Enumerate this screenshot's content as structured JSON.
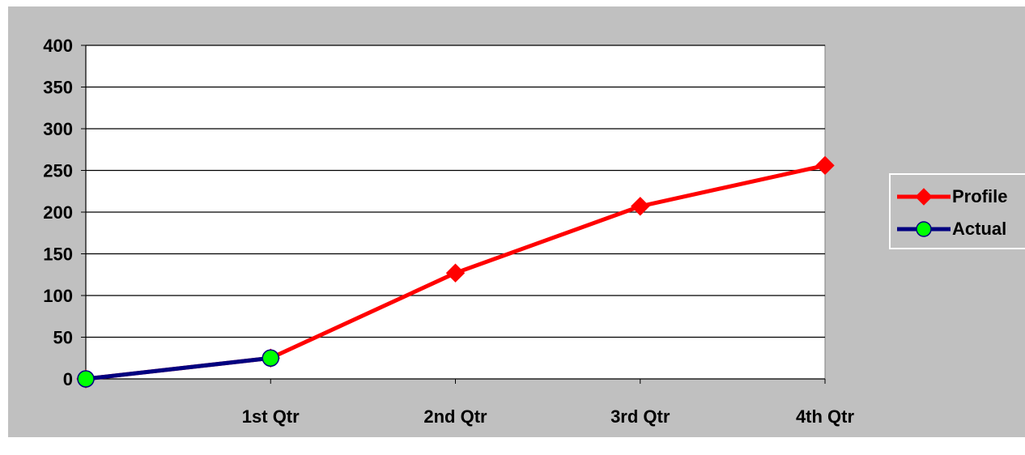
{
  "chart_data": {
    "type": "line",
    "categories": [
      "",
      "1st Qtr",
      "2nd Qtr",
      "3rd Qtr",
      "4th Qtr"
    ],
    "ylim": [
      0,
      400
    ],
    "yticks": [
      "0",
      "50",
      "100",
      "150",
      "200",
      "250",
      "300",
      "350",
      "400"
    ],
    "ytick_values": [
      0,
      50,
      100,
      150,
      200,
      250,
      300,
      350,
      400
    ],
    "grid": true,
    "legend_position": "right",
    "series": [
      {
        "name": "Profile",
        "values": [
          0,
          25,
          127,
          207,
          256
        ],
        "color": "#ff0000",
        "marker": "diamond",
        "marker_color": "#ff0000"
      },
      {
        "name": "Actual",
        "values": [
          0,
          25,
          null,
          null,
          null
        ],
        "color": "#000080",
        "marker": "circle",
        "marker_color": "#00ff00"
      }
    ],
    "plot_background": "#ffffff",
    "chart_background": "#c0c0c0"
  }
}
